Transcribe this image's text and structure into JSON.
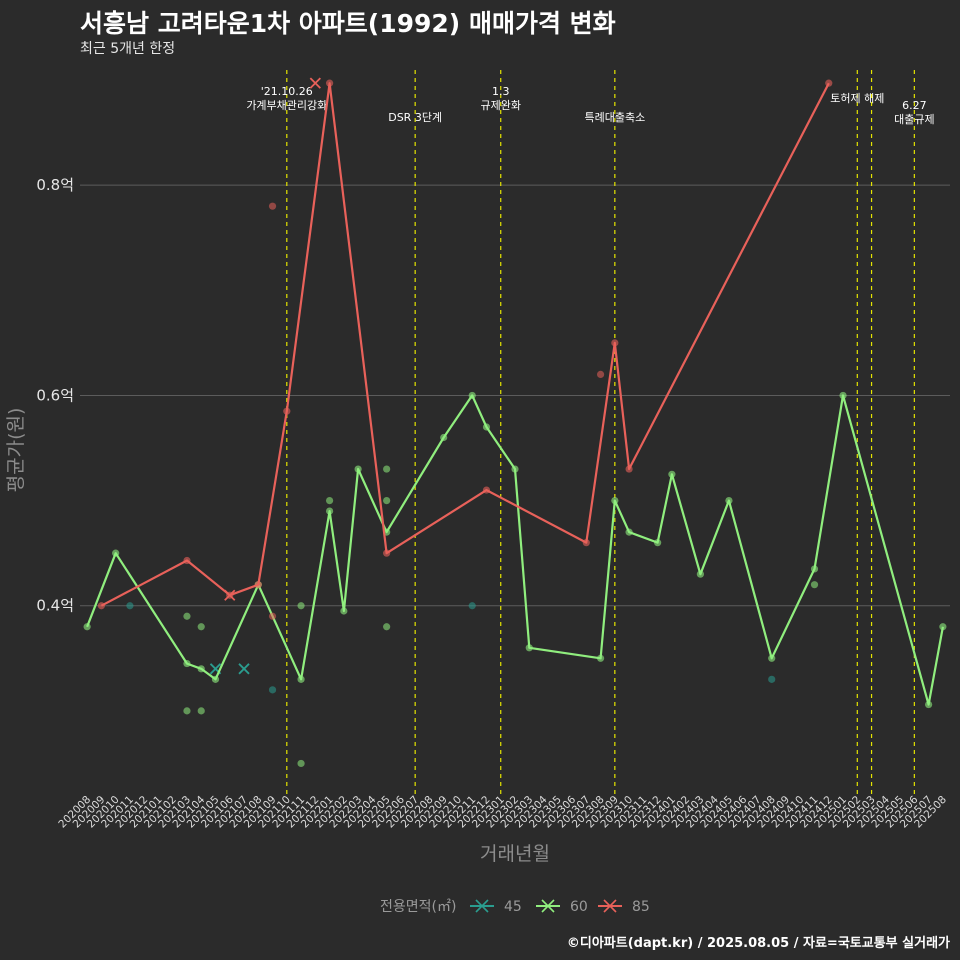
{
  "header": {
    "title": "서흥남 고려타운1차 아파트(1992) 매매가격 변화",
    "subtitle": "최근 5개년 한정"
  },
  "footer": {
    "credit": "©디아파트(dapt.kr) / 2025.08.05 / 자료=국토교통부 실거래가"
  },
  "chart_data": {
    "type": "line",
    "xlabel": "거래년월",
    "ylabel": "평균가(원)",
    "x": [
      "202008",
      "202009",
      "202010",
      "202011",
      "202012",
      "202101",
      "202102",
      "202103",
      "202104",
      "202105",
      "202106",
      "202107",
      "202108",
      "202109",
      "202110",
      "202111",
      "202112",
      "202201",
      "202202",
      "202203",
      "202204",
      "202205",
      "202206",
      "202207",
      "202208",
      "202209",
      "202210",
      "202211",
      "202212",
      "202301",
      "202302",
      "202303",
      "202304",
      "202305",
      "202306",
      "202307",
      "202308",
      "202309",
      "202310",
      "202311",
      "202312",
      "202401",
      "202402",
      "202403",
      "202404",
      "202405",
      "202406",
      "202407",
      "202408",
      "202409",
      "202410",
      "202411",
      "202412",
      "202501",
      "202502",
      "202503",
      "202504",
      "202505",
      "202506",
      "202507",
      "202508"
    ],
    "y_ticks": [
      {
        "value": 0.4,
        "label": "0.4억"
      },
      {
        "value": 0.6,
        "label": "0.6억"
      },
      {
        "value": 0.8,
        "label": "0.8억"
      }
    ],
    "ylim": [
      0.22,
      0.9
    ],
    "grid": true,
    "legend": {
      "title": "전용면적(㎡)",
      "position": "bottom",
      "entries": [
        "45",
        "60",
        "85"
      ]
    },
    "series": [
      {
        "name": "45",
        "color": "#2a9d8f",
        "line": [],
        "cross": [
          [
            "202105",
            0.34
          ],
          [
            "202107",
            0.34
          ]
        ],
        "points": [
          [
            "202011",
            0.4
          ],
          [
            "202109",
            0.32
          ],
          [
            "202211",
            0.4
          ],
          [
            "202408",
            0.33
          ]
        ]
      },
      {
        "name": "60",
        "color": "#90ee7e",
        "line": [
          [
            "202008",
            0.38
          ],
          [
            "202010",
            0.45
          ],
          [
            "202103",
            0.345
          ],
          [
            "202104",
            0.34
          ],
          [
            "202105",
            0.33
          ],
          [
            "202108",
            0.42
          ],
          [
            "202111",
            0.33
          ],
          [
            "202201",
            0.49
          ],
          [
            "202202",
            0.395
          ],
          [
            "202203",
            0.53
          ],
          [
            "202205",
            0.47
          ],
          [
            "202209",
            0.56
          ],
          [
            "202211",
            0.6
          ],
          [
            "202212",
            0.57
          ],
          [
            "202302",
            0.53
          ],
          [
            "202303",
            0.36
          ],
          [
            "202308",
            0.35
          ],
          [
            "202309",
            0.5
          ],
          [
            "202310",
            0.47
          ],
          [
            "202312",
            0.46
          ],
          [
            "202401",
            0.525
          ],
          [
            "202403",
            0.43
          ],
          [
            "202405",
            0.5
          ],
          [
            "202408",
            0.35
          ],
          [
            "202411",
            0.435
          ],
          [
            "202501",
            0.6
          ],
          [
            "202507",
            0.306
          ],
          [
            "202508",
            0.38
          ]
        ],
        "cross": [],
        "points": [
          [
            "202103",
            0.39
          ],
          [
            "202103",
            0.3
          ],
          [
            "202104",
            0.38
          ],
          [
            "202104",
            0.3
          ],
          [
            "202111",
            0.4
          ],
          [
            "202111",
            0.25
          ],
          [
            "202201",
            0.5
          ],
          [
            "202205",
            0.53
          ],
          [
            "202205",
            0.5
          ],
          [
            "202205",
            0.38
          ],
          [
            "202411",
            0.42
          ]
        ]
      },
      {
        "name": "85",
        "color": "#e8615a",
        "line": [
          [
            "202009",
            0.4
          ],
          [
            "202103",
            0.443
          ],
          [
            "202106",
            0.41
          ],
          [
            "202108",
            0.42
          ],
          [
            "202110",
            0.585
          ],
          [
            "202201",
            0.897
          ],
          [
            "202205",
            0.45
          ],
          [
            "202212",
            0.51
          ],
          [
            "202307",
            0.46
          ],
          [
            "202309",
            0.65
          ],
          [
            "202310",
            0.53
          ],
          [
            "202412",
            0.897
          ]
        ],
        "cross": [
          [
            "202106",
            0.41
          ],
          [
            "202112",
            0.897
          ]
        ],
        "points": [
          [
            "202109",
            0.78
          ],
          [
            "202109",
            0.39
          ],
          [
            "202308",
            0.62
          ]
        ]
      }
    ],
    "events": [
      {
        "x": "202110",
        "lines": [
          "'21.10.26",
          "가계부채관리강화"
        ]
      },
      {
        "x": "202207",
        "lines": [
          "DSR 3단계"
        ]
      },
      {
        "x": "202301",
        "lines": [
          "1.3",
          "규제완화"
        ]
      },
      {
        "x": "202309",
        "lines": [
          "특례대출축소"
        ]
      },
      {
        "x": "202502",
        "lines": [
          "토허제 해제"
        ]
      },
      {
        "x": "202503",
        "lines": []
      },
      {
        "x": "202506",
        "lines": [
          "6.27",
          "대출규제"
        ]
      }
    ]
  }
}
